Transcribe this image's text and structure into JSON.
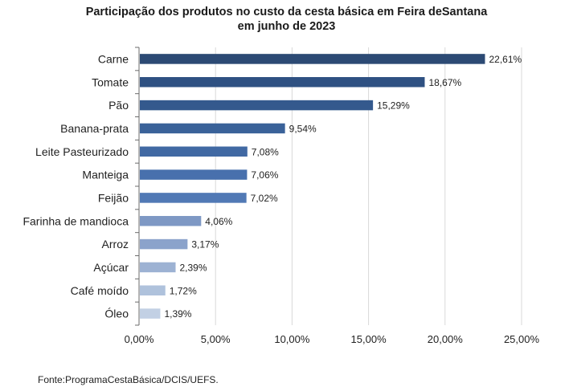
{
  "chart_data": {
    "type": "bar",
    "orientation": "horizontal",
    "title_lines": [
      "Participação dos produtos no custo da cesta básica em Feira deSantana",
      "em junho de 2023"
    ],
    "categories": [
      "Carne",
      "Tomate",
      "Pão",
      "Banana-prata",
      "Leite Pasteurizado",
      "Manteiga",
      "Feijão",
      "Farinha de mandioca",
      "Arroz",
      "Açúcar",
      "Café moído",
      "Óleo"
    ],
    "values": [
      22.61,
      18.67,
      15.29,
      9.54,
      7.08,
      7.06,
      7.02,
      4.06,
      3.17,
      2.39,
      1.72,
      1.39
    ],
    "value_labels": [
      "22,61%",
      "18,67%",
      "15,29%",
      "9,54%",
      "7,08%",
      "7,06%",
      "7,02%",
      "4,06%",
      "3,17%",
      "2,39%",
      "1,72%",
      "1,39%"
    ],
    "bar_colors": [
      "#2c4a74",
      "#2f5182",
      "#34598d",
      "#3a6299",
      "#4169a3",
      "#4870ad",
      "#5179b5",
      "#7e98c4",
      "#8ba3cb",
      "#9db2d3",
      "#afc2dc",
      "#c2d0e4"
    ],
    "xlim": [
      0,
      25
    ],
    "x_ticks": [
      0,
      5,
      10,
      15,
      20,
      25
    ],
    "x_tick_labels": [
      "0,00%",
      "5,00%",
      "10,00%",
      "15,00%",
      "20,00%",
      "25,00%"
    ],
    "grid": true,
    "legend": false
  },
  "source": "Fonte:ProgramaCestaBásica/DCIS/UEFS."
}
